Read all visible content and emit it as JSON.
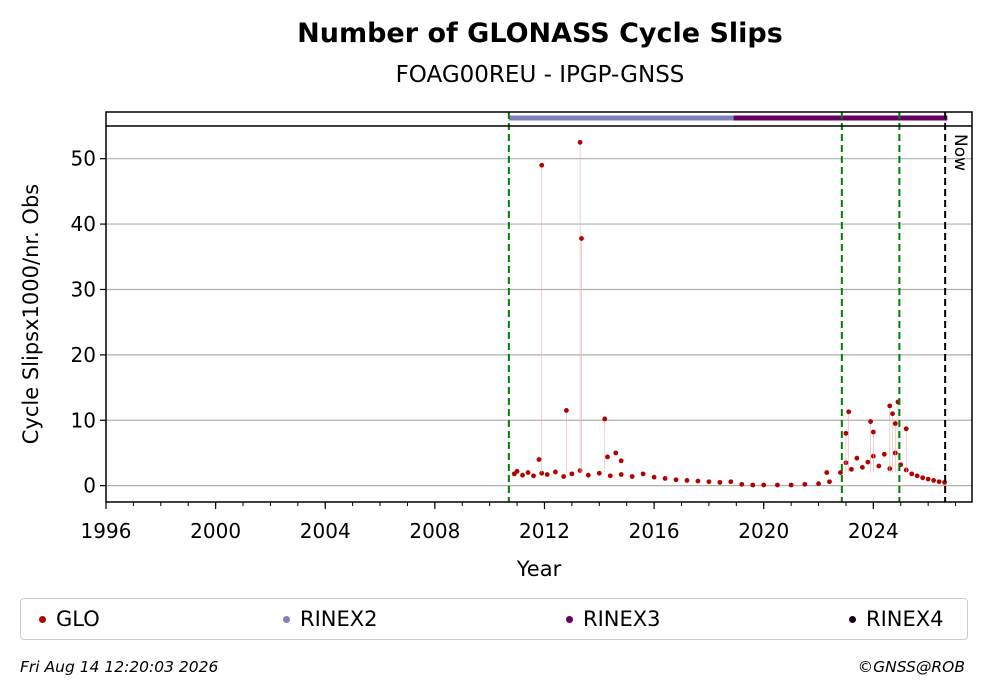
{
  "chart_data": {
    "type": "scatter",
    "title": "Number of GLONASS Cycle Slips",
    "subtitle": "FOAG00REU - IPGP-GNSS",
    "xlabel": "Year",
    "ylabel": "Cycle Slipsx1000/nr. Obs",
    "xlim": [
      1996,
      2027.6
    ],
    "ylim": [
      -2.5,
      55
    ],
    "xticks": [
      "1996",
      "2000",
      "2004",
      "2008",
      "2012",
      "2016",
      "2020",
      "2024"
    ],
    "yticks": [
      "0",
      "10",
      "20",
      "30",
      "40",
      "50"
    ],
    "grid": "y",
    "legend_position": "bottom",
    "series": [
      {
        "name": "GLO",
        "color": "#b30000",
        "x": [
          2010.9,
          2011.0,
          2011.2,
          2011.4,
          2011.6,
          2011.9,
          2012.1,
          2012.4,
          2012.7,
          2013.0,
          2013.3,
          2013.6,
          2014.0,
          2014.4,
          2014.8,
          2015.2,
          2015.6,
          2016.0,
          2016.4,
          2016.8,
          2017.2,
          2017.6,
          2018.0,
          2018.4,
          2018.8,
          2019.2,
          2019.6,
          2020.0,
          2020.5,
          2021.0,
          2021.5,
          2022.0,
          2022.4,
          2022.8,
          2023.0,
          2023.2,
          2023.4,
          2023.6,
          2023.8,
          2024.0,
          2024.2,
          2024.4,
          2024.6,
          2024.8,
          2025.0,
          2025.2,
          2025.4,
          2025.6,
          2025.8,
          2026.0,
          2026.2,
          2026.4,
          2026.6,
          2011.8,
          2011.9,
          2012.8,
          2013.3,
          2013.35,
          2014.2,
          2014.3,
          2014.6,
          2014.8,
          2023.0,
          2023.1,
          2023.9,
          2024.0,
          2024.6,
          2024.7,
          2024.8,
          2024.9,
          2025.2,
          2022.3
        ],
        "y": [
          1.8,
          2.2,
          1.6,
          2.0,
          1.5,
          1.9,
          1.7,
          2.1,
          1.4,
          1.8,
          2.3,
          1.6,
          1.9,
          1.5,
          1.7,
          1.4,
          1.8,
          1.3,
          1.1,
          0.9,
          0.8,
          0.7,
          0.6,
          0.5,
          0.6,
          0.2,
          0.1,
          0.1,
          0.1,
          0.1,
          0.2,
          0.3,
          0.6,
          2.0,
          3.5,
          2.5,
          4.2,
          2.8,
          3.6,
          4.5,
          3.0,
          4.8,
          2.6,
          5.0,
          3.2,
          2.4,
          1.8,
          1.5,
          1.2,
          1.0,
          0.8,
          0.6,
          0.5,
          4.0,
          49.0,
          11.5,
          52.5,
          37.8,
          10.2,
          4.4,
          5.0,
          3.8,
          8.0,
          11.3,
          9.8,
          8.2,
          12.2,
          11.0,
          9.5,
          12.8,
          8.7,
          2.0
        ]
      }
    ],
    "rinex_bars": [
      {
        "name": "RINEX2",
        "color": "#7f7fbf",
        "from": 2010.7,
        "to": 2018.9
      },
      {
        "name": "RINEX3",
        "color": "#660066",
        "from": 2018.9,
        "to": 2026.7
      },
      {
        "name": "RINEX4",
        "color": "#1a001a",
        "from": null,
        "to": null
      }
    ],
    "vertical_lines": [
      {
        "x": 2010.7,
        "color": "#008000",
        "style": "dashed"
      },
      {
        "x": 2022.85,
        "color": "#008000",
        "style": "dashed"
      },
      {
        "x": 2024.95,
        "color": "#008000",
        "style": "dashed"
      },
      {
        "x": 2026.62,
        "color": "#000000",
        "style": "dashed",
        "label": "Now"
      }
    ]
  },
  "legend": [
    {
      "label": "GLO",
      "color": "#b30000"
    },
    {
      "label": "RINEX2",
      "color": "#7f7fbf"
    },
    {
      "label": "RINEX3",
      "color": "#660066"
    },
    {
      "label": "RINEX4",
      "color": "#1a001a"
    }
  ],
  "footer": {
    "timestamp": "Fri Aug 14 12:20:03 2026",
    "copyright": "©GNSS@ROB"
  }
}
